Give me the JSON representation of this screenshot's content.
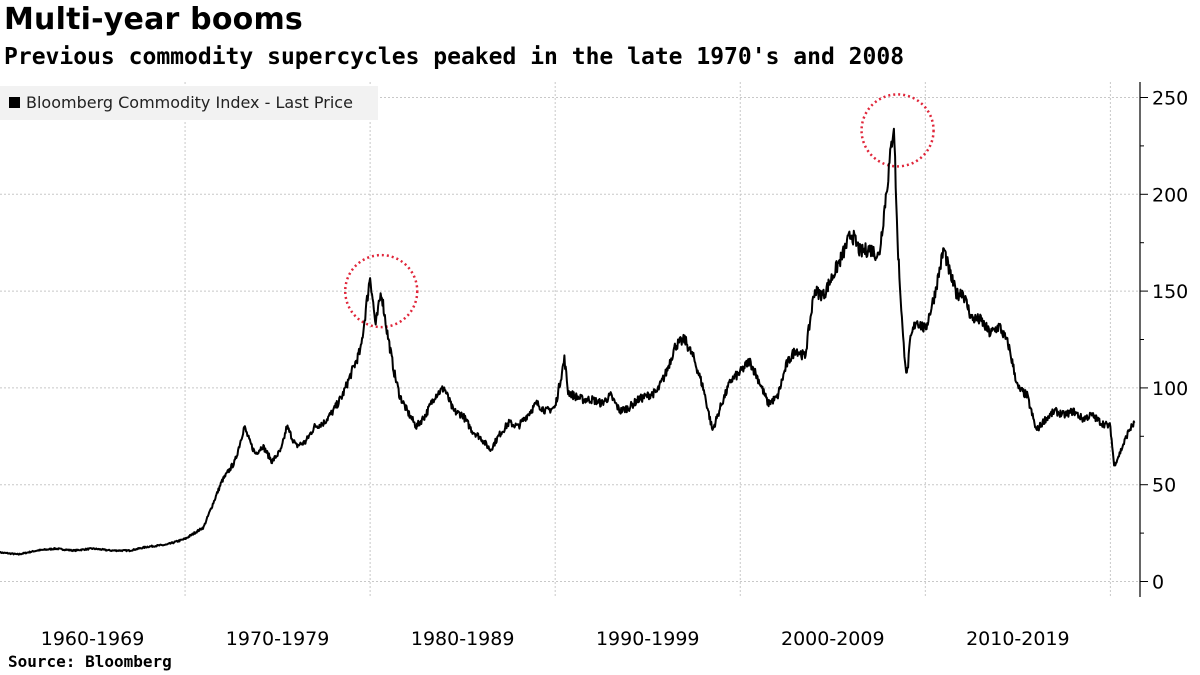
{
  "header": {
    "title": "Multi-year booms",
    "subtitle": "Previous commodity supercycles peaked in the late 1970's and 2008"
  },
  "footer": {
    "source": "Source: Bloomberg"
  },
  "colors": {
    "line": "#000000",
    "grid": "#c8c8c8",
    "highlight": "#e0263a",
    "legend_bg": "#f2f2f2"
  },
  "chart_data": {
    "type": "line",
    "title": "Multi-year booms",
    "subtitle": "Previous commodity supercycles peaked in the late 1970's and 2008",
    "legend": [
      "Bloomberg Commodity Index - Last Price"
    ],
    "legend_placement": "top-left",
    "xlabel": "",
    "ylabel": "",
    "y_axis_side": "right",
    "ylim": [
      -8,
      258
    ],
    "yticks": [
      0,
      50,
      100,
      150,
      200,
      250
    ],
    "xlim": [
      1960,
      2021.6
    ],
    "x_tick_labels": [
      {
        "label": "1960-1969",
        "center": 1965
      },
      {
        "label": "1970-1979",
        "center": 1975
      },
      {
        "label": "1980-1989",
        "center": 1985
      },
      {
        "label": "1990-1999",
        "center": 1995
      },
      {
        "label": "2000-2009",
        "center": 2005
      },
      {
        "label": "2010-2019",
        "center": 2015
      }
    ],
    "x_gridlines": [
      1970,
      1980,
      1990,
      2000,
      2010,
      2020
    ],
    "annotations": [
      {
        "type": "circle",
        "x": 1980.6,
        "y": 150,
        "note": "late 1970's peak"
      },
      {
        "type": "circle",
        "x": 2008.5,
        "y": 233,
        "note": "2008 peak"
      }
    ],
    "series": [
      {
        "name": "Bloomberg Commodity Index - Last Price",
        "x": [
          1960.0,
          1961.0,
          1962.0,
          1963.0,
          1964.0,
          1965.0,
          1966.0,
          1967.0,
          1968.0,
          1969.0,
          1970.0,
          1971.0,
          1972.0,
          1972.7,
          1973.2,
          1973.5,
          1973.8,
          1974.2,
          1974.7,
          1975.2,
          1975.5,
          1976.0,
          1976.5,
          1977.0,
          1977.5,
          1978.0,
          1978.5,
          1979.0,
          1979.5,
          1980.0,
          1980.3,
          1980.6,
          1980.9,
          1981.3,
          1981.6,
          1982.0,
          1982.5,
          1983.0,
          1983.5,
          1984.0,
          1984.5,
          1985.0,
          1985.5,
          1986.0,
          1986.5,
          1987.0,
          1987.5,
          1988.0,
          1988.5,
          1989.0,
          1989.5,
          1990.0,
          1990.5,
          1990.7,
          1991.0,
          1991.5,
          1992.0,
          1992.5,
          1993.0,
          1993.5,
          1994.0,
          1994.5,
          1995.0,
          1995.5,
          1996.0,
          1996.5,
          1997.0,
          1997.5,
          1998.0,
          1998.5,
          1999.0,
          1999.5,
          2000.0,
          2000.5,
          2001.0,
          2001.5,
          2002.0,
          2002.5,
          2003.0,
          2003.5,
          2004.0,
          2004.5,
          2005.0,
          2005.5,
          2006.0,
          2006.5,
          2007.0,
          2007.5,
          2008.0,
          2008.3,
          2008.5,
          2008.8,
          2009.0,
          2009.2,
          2009.5,
          2010.0,
          2010.5,
          2011.0,
          2011.3,
          2011.7,
          2012.0,
          2012.5,
          2013.0,
          2013.5,
          2014.0,
          2014.5,
          2015.0,
          2015.5,
          2016.0,
          2016.5,
          2017.0,
          2017.5,
          2018.0,
          2018.5,
          2019.0,
          2019.5,
          2020.0,
          2020.2,
          2020.5,
          2021.0,
          2021.3
        ],
        "values": [
          15,
          14,
          16,
          17,
          16,
          17,
          16,
          16,
          18,
          19,
          22,
          28,
          52,
          62,
          80,
          72,
          66,
          70,
          62,
          68,
          80,
          70,
          72,
          80,
          82,
          88,
          96,
          108,
          120,
          158,
          132,
          150,
          130,
          108,
          96,
          88,
          80,
          86,
          96,
          100,
          88,
          86,
          78,
          74,
          68,
          76,
          82,
          80,
          86,
          92,
          88,
          90,
          115,
          98,
          96,
          94,
          94,
          92,
          96,
          88,
          90,
          94,
          96,
          98,
          108,
          122,
          125,
          115,
          100,
          78,
          92,
          104,
          108,
          114,
          104,
          92,
          95,
          112,
          120,
          116,
          150,
          148,
          158,
          168,
          180,
          170,
          172,
          168,
          210,
          237,
          175,
          125,
          106,
          125,
          135,
          130,
          148,
          172,
          160,
          148,
          150,
          136,
          135,
          128,
          132,
          122,
          100,
          96,
          78,
          84,
          88,
          86,
          88,
          84,
          86,
          82,
          80,
          60,
          66,
          78,
          82
        ]
      }
    ]
  }
}
